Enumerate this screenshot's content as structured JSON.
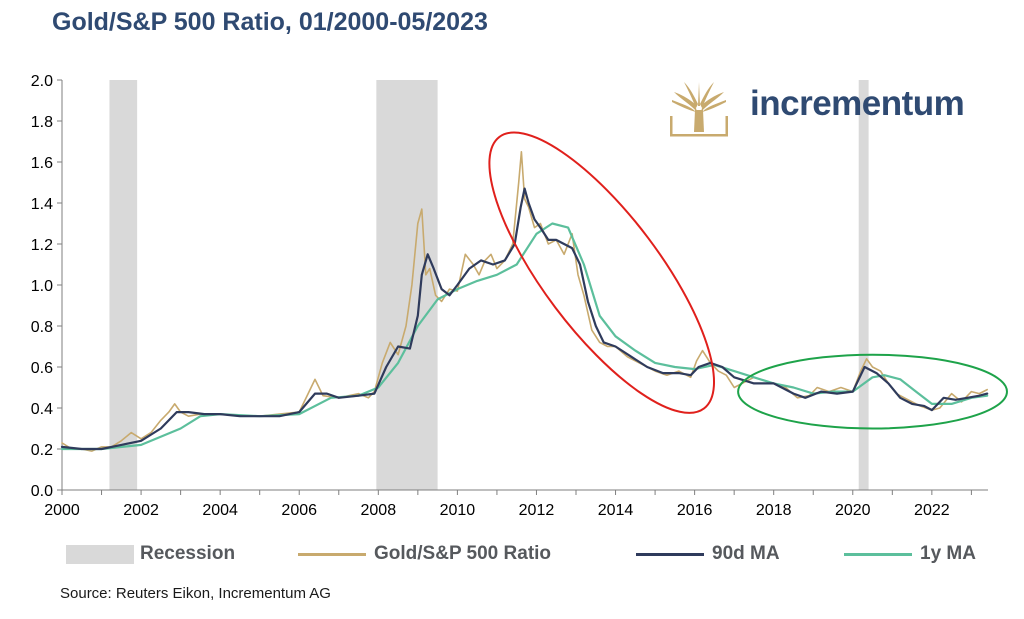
{
  "title": "Gold/S&P 500 Ratio, 01/2000-05/2023",
  "source": "Source: Reuters Eikon, Incrementum AG",
  "logo": {
    "text": "incrementum"
  },
  "colors": {
    "ratio": "#c8aa6e",
    "ma90": "#2f3b5c",
    "ma1y": "#5cbf9c",
    "recession": "#d9d9d9",
    "red_ellipse": "#e0201c",
    "green_ellipse": "#1ea34a",
    "title": "#2f4a72"
  },
  "legend": [
    {
      "label": "Recession",
      "kind": "rect",
      "color": "#d9d9d9"
    },
    {
      "label": "Gold/S&P 500 Ratio",
      "kind": "line",
      "color": "#c8aa6e"
    },
    {
      "label": "90d MA",
      "kind": "line",
      "color": "#2f3b5c"
    },
    {
      "label": "1y MA",
      "kind": "line",
      "color": "#5cbf9c"
    }
  ],
  "chart_data": {
    "type": "line",
    "title": "Gold/S&P 500 Ratio, 01/2000-05/2023",
    "xlabel": "",
    "ylabel": "",
    "xlim": [
      2000,
      2023.42
    ],
    "ylim": [
      0,
      2.0
    ],
    "x_ticks": [
      "2000",
      "2002",
      "2004",
      "2006",
      "2008",
      "2010",
      "2012",
      "2014",
      "2016",
      "2018",
      "2020",
      "2022"
    ],
    "y_ticks": [
      "0.0",
      "0.2",
      "0.4",
      "0.6",
      "0.8",
      "1.0",
      "1.2",
      "1.4",
      "1.6",
      "1.8",
      "2.0"
    ],
    "recessions": [
      [
        2001.2,
        2001.9
      ],
      [
        2007.95,
        2009.5
      ],
      [
        2020.15,
        2020.4
      ]
    ],
    "annotations": [
      {
        "shape": "ellipse",
        "color": "red",
        "x_range": [
          2010.7,
          2016.6
        ],
        "y_range": [
          0.42,
          1.7
        ]
      },
      {
        "shape": "ellipse",
        "color": "green",
        "x_range": [
          2017.1,
          2023.9
        ],
        "y_range": [
          0.3,
          0.66
        ]
      }
    ],
    "series": [
      {
        "name": "Gold/S&P 500 Ratio",
        "x": [
          2000,
          2000.25,
          2000.5,
          2000.75,
          2001,
          2001.25,
          2001.5,
          2001.75,
          2002,
          2002.25,
          2002.5,
          2002.7,
          2002.85,
          2003,
          2003.2,
          2003.5,
          2003.75,
          2004,
          2004.5,
          2005,
          2005.5,
          2006,
          2006.25,
          2006.4,
          2006.6,
          2007,
          2007.5,
          2007.75,
          2007.9,
          2008.1,
          2008.3,
          2008.5,
          2008.7,
          2008.85,
          2009,
          2009.1,
          2009.2,
          2009.3,
          2009.45,
          2009.6,
          2009.8,
          2010,
          2010.2,
          2010.4,
          2010.55,
          2010.7,
          2010.85,
          2011,
          2011.2,
          2011.4,
          2011.55,
          2011.62,
          2011.7,
          2011.8,
          2011.95,
          2012.1,
          2012.3,
          2012.5,
          2012.7,
          2012.9,
          2013.05,
          2013.2,
          2013.4,
          2013.6,
          2013.8,
          2014,
          2014.3,
          2014.6,
          2015,
          2015.3,
          2015.6,
          2015.9,
          2016.05,
          2016.2,
          2016.4,
          2016.6,
          2016.8,
          2017,
          2017.5,
          2018,
          2018.3,
          2018.6,
          2018.9,
          2019.1,
          2019.4,
          2019.7,
          2020,
          2020.2,
          2020.35,
          2020.5,
          2020.7,
          2020.9,
          2021.1,
          2021.4,
          2021.7,
          2022,
          2022.2,
          2022.5,
          2022.75,
          2023,
          2023.2,
          2023.4
        ],
        "y": [
          0.23,
          0.2,
          0.2,
          0.19,
          0.21,
          0.21,
          0.24,
          0.28,
          0.25,
          0.28,
          0.34,
          0.38,
          0.42,
          0.38,
          0.36,
          0.37,
          0.37,
          0.37,
          0.36,
          0.36,
          0.37,
          0.38,
          0.48,
          0.54,
          0.46,
          0.45,
          0.47,
          0.45,
          0.48,
          0.62,
          0.72,
          0.66,
          0.8,
          1.0,
          1.3,
          1.37,
          1.05,
          1.08,
          0.95,
          0.92,
          0.98,
          0.97,
          1.15,
          1.1,
          1.05,
          1.12,
          1.15,
          1.08,
          1.12,
          1.2,
          1.5,
          1.65,
          1.42,
          1.38,
          1.28,
          1.3,
          1.2,
          1.22,
          1.15,
          1.25,
          1.05,
          0.95,
          0.78,
          0.72,
          0.7,
          0.7,
          0.65,
          0.62,
          0.58,
          0.56,
          0.58,
          0.55,
          0.63,
          0.68,
          0.62,
          0.58,
          0.56,
          0.5,
          0.55,
          0.52,
          0.5,
          0.45,
          0.46,
          0.5,
          0.48,
          0.5,
          0.48,
          0.58,
          0.64,
          0.6,
          0.58,
          0.52,
          0.47,
          0.44,
          0.41,
          0.39,
          0.4,
          0.47,
          0.43,
          0.48,
          0.47,
          0.49
        ]
      },
      {
        "name": "90d MA",
        "x": [
          2000,
          2000.5,
          2001,
          2001.5,
          2002,
          2002.5,
          2002.9,
          2003.2,
          2003.6,
          2004,
          2004.5,
          2005,
          2005.5,
          2006,
          2006.4,
          2006.7,
          2007,
          2007.5,
          2007.9,
          2008.2,
          2008.5,
          2008.8,
          2009,
          2009.1,
          2009.25,
          2009.4,
          2009.6,
          2009.8,
          2010,
          2010.3,
          2010.6,
          2010.9,
          2011.2,
          2011.45,
          2011.6,
          2011.7,
          2011.8,
          2011.95,
          2012.1,
          2012.3,
          2012.5,
          2012.7,
          2012.9,
          2013.1,
          2013.3,
          2013.5,
          2013.7,
          2014,
          2014.4,
          2014.8,
          2015.2,
          2015.6,
          2015.9,
          2016.1,
          2016.4,
          2016.7,
          2017,
          2017.5,
          2018,
          2018.5,
          2018.8,
          2019.2,
          2019.6,
          2020,
          2020.3,
          2020.6,
          2020.9,
          2021.2,
          2021.5,
          2021.8,
          2022,
          2022.3,
          2022.6,
          2022.9,
          2023.2,
          2023.4
        ],
        "y": [
          0.21,
          0.2,
          0.2,
          0.22,
          0.24,
          0.3,
          0.38,
          0.38,
          0.37,
          0.37,
          0.36,
          0.36,
          0.36,
          0.38,
          0.47,
          0.47,
          0.45,
          0.46,
          0.47,
          0.6,
          0.7,
          0.69,
          0.85,
          1.05,
          1.15,
          1.08,
          0.98,
          0.95,
          1.0,
          1.08,
          1.12,
          1.1,
          1.12,
          1.2,
          1.38,
          1.47,
          1.4,
          1.32,
          1.28,
          1.22,
          1.22,
          1.2,
          1.18,
          1.1,
          0.92,
          0.8,
          0.72,
          0.7,
          0.65,
          0.6,
          0.57,
          0.57,
          0.56,
          0.6,
          0.62,
          0.6,
          0.55,
          0.52,
          0.52,
          0.47,
          0.45,
          0.48,
          0.47,
          0.48,
          0.6,
          0.57,
          0.52,
          0.45,
          0.42,
          0.41,
          0.39,
          0.45,
          0.44,
          0.45,
          0.46,
          0.47
        ]
      },
      {
        "name": "1y MA",
        "x": [
          2000,
          2001,
          2002,
          2003,
          2003.5,
          2004,
          2005,
          2006,
          2006.8,
          2007.5,
          2008,
          2008.5,
          2009,
          2009.5,
          2010,
          2010.5,
          2011,
          2011.5,
          2012,
          2012.4,
          2012.8,
          2013.2,
          2013.6,
          2014,
          2014.5,
          2015,
          2015.5,
          2016,
          2016.5,
          2017,
          2017.5,
          2018,
          2018.5,
          2019,
          2019.5,
          2020,
          2020.5,
          2020.8,
          2021.2,
          2021.6,
          2022,
          2022.5,
          2023,
          2023.4
        ],
        "y": [
          0.2,
          0.2,
          0.22,
          0.3,
          0.36,
          0.37,
          0.36,
          0.37,
          0.45,
          0.46,
          0.5,
          0.62,
          0.8,
          0.93,
          0.98,
          1.02,
          1.05,
          1.1,
          1.25,
          1.3,
          1.28,
          1.1,
          0.85,
          0.75,
          0.68,
          0.62,
          0.6,
          0.59,
          0.61,
          0.58,
          0.55,
          0.52,
          0.5,
          0.47,
          0.48,
          0.48,
          0.55,
          0.56,
          0.54,
          0.48,
          0.42,
          0.42,
          0.45,
          0.46
        ]
      }
    ]
  }
}
